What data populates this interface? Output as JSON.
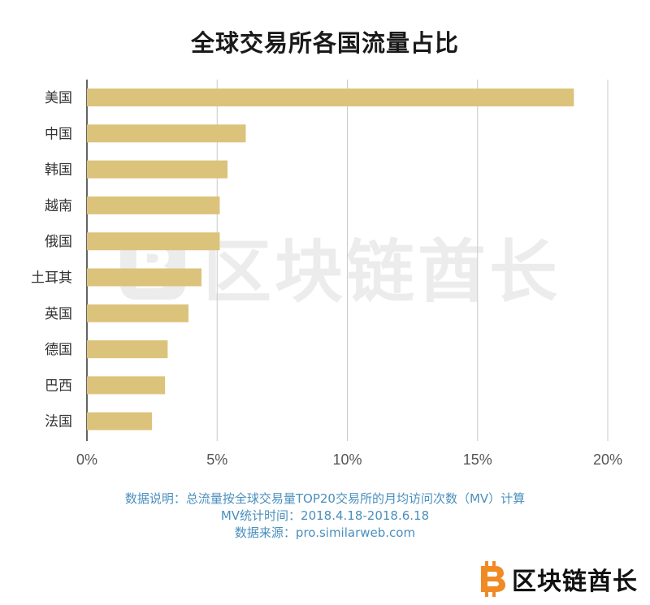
{
  "title": "全球交易所各国流量占比",
  "chart_data": {
    "type": "bar",
    "orientation": "horizontal",
    "title": "全球交易所各国流量占比",
    "categories": [
      "美国",
      "中国",
      "韩国",
      "越南",
      "俄国",
      "土耳其",
      "英国",
      "德国",
      "巴西",
      "法国"
    ],
    "values": [
      18.7,
      6.1,
      5.4,
      5.1,
      5.1,
      4.4,
      3.9,
      3.1,
      3.0,
      2.5
    ],
    "xlim": [
      0,
      20
    ],
    "xticks": [
      0,
      5,
      10,
      15,
      20
    ],
    "xtick_labels": [
      "0%",
      "5%",
      "10%",
      "15%",
      "20%"
    ],
    "xlabel": "",
    "ylabel": "",
    "grid": "vertical",
    "bar_color": "#dcc37c",
    "gridline_color": "#c9c9c9"
  },
  "notes": {
    "line1": "数据说明：总流量按全球交易量TOP20交易所的月均访问次数（MV）计算",
    "line2": "MV统计时间：2018.4.18-2018.6.18",
    "line3": "数据来源：pro.similarweb.com"
  },
  "brand": {
    "name": "区块链酋长",
    "logo_icon": "bitcoin-b-icon",
    "accent_color": "#f08a24"
  },
  "watermark": {
    "text": "区块链酋长"
  }
}
